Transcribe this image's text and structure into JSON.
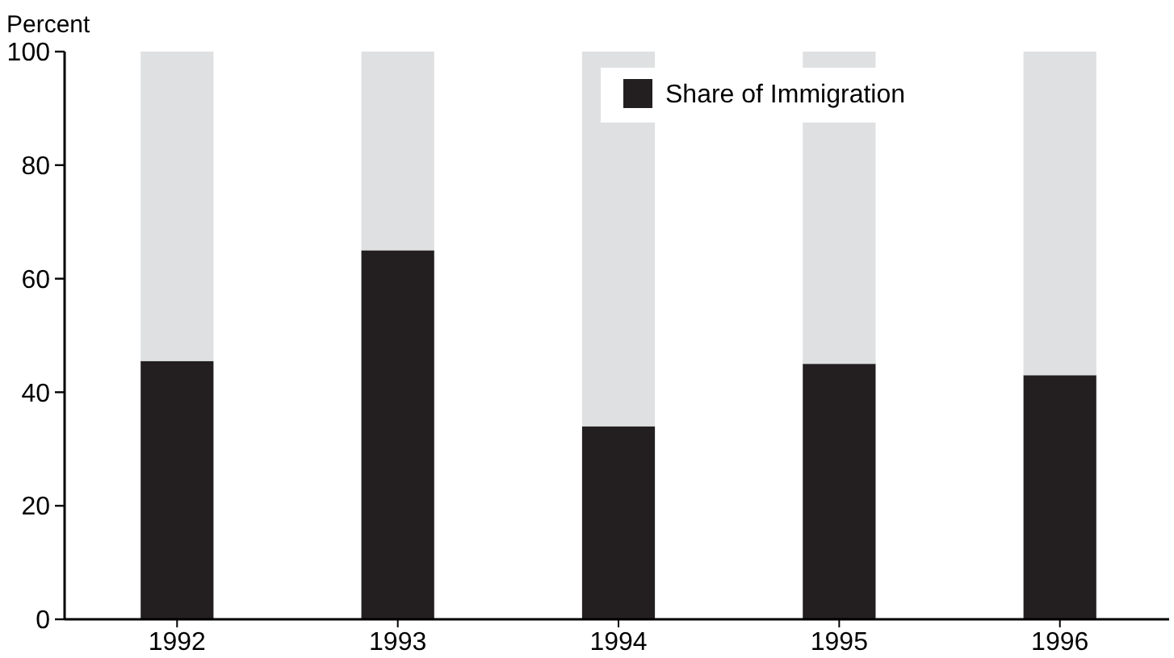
{
  "chart_data": {
    "type": "bar",
    "ylabel": "Percent",
    "categories": [
      "1992",
      "1993",
      "1994",
      "1995",
      "1996"
    ],
    "stacked": true,
    "series": [
      {
        "name": "Share of Immigration",
        "color": "#231f20",
        "values": [
          45.5,
          65,
          34,
          45,
          43
        ]
      },
      {
        "color": "#dfe0e1",
        "values": [
          54.5,
          35,
          66,
          55,
          57
        ]
      }
    ],
    "ylim": [
      0,
      100
    ],
    "yticks": [
      0,
      20,
      40,
      60,
      80,
      100
    ],
    "legend": "top right",
    "grid": false
  }
}
